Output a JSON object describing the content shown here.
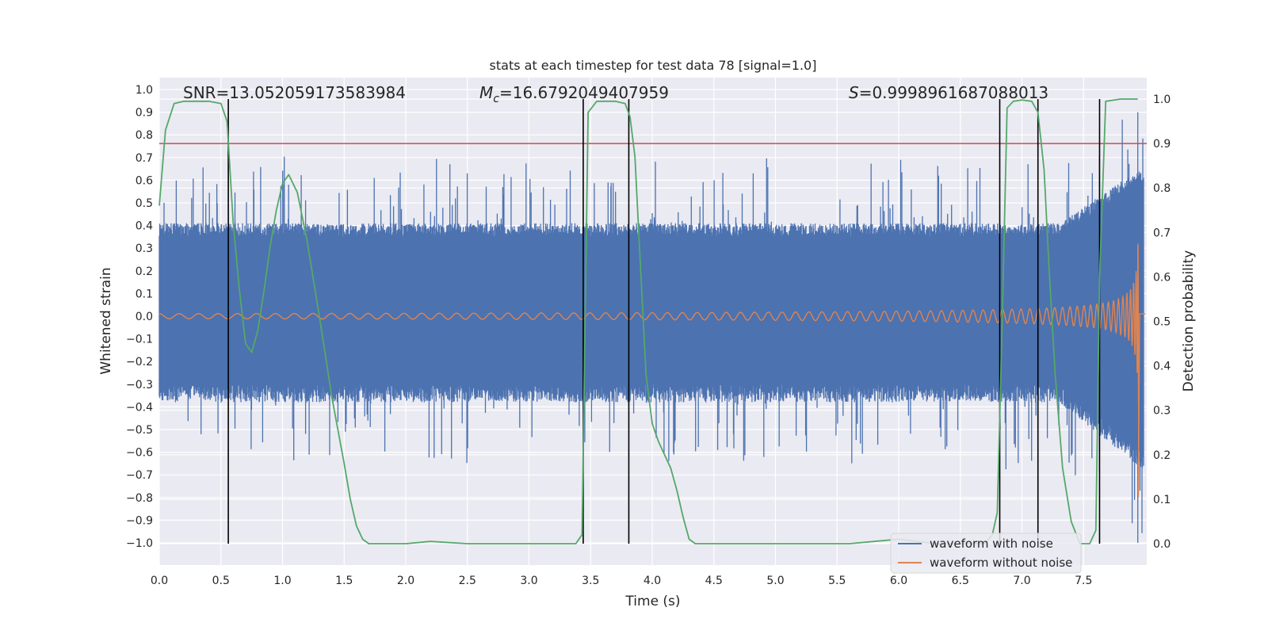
{
  "chart_data": {
    "type": "line",
    "title": "stats at each timestep for test data 78 [signal=1.0]",
    "xlabel": "Time (s)",
    "ylabel": "Whitened strain",
    "y2label": "Detection probability",
    "xlim": [
      0.0,
      8.0
    ],
    "ylim": [
      -1.1,
      1.05
    ],
    "y2lim": [
      -0.05,
      1.03
    ],
    "x_ticks": [
      "0.0",
      "0.5",
      "1.0",
      "1.5",
      "2.0",
      "2.5",
      "3.0",
      "3.5",
      "4.0",
      "4.5",
      "5.0",
      "5.5",
      "6.0",
      "6.5",
      "7.0",
      "7.5"
    ],
    "y_ticks": [
      "1.0",
      "0.9",
      "0.8",
      "0.7",
      "0.6",
      "0.5",
      "0.4",
      "0.3",
      "0.2",
      "0.1",
      "0.0",
      "−0.1",
      "−0.2",
      "−0.3",
      "−0.4",
      "−0.5",
      "−0.6",
      "−0.7",
      "−0.8",
      "−0.9",
      "−1.0"
    ],
    "y2_ticks": [
      "1.0",
      "0.9",
      "0.8",
      "0.7",
      "0.6",
      "0.5",
      "0.4",
      "0.3",
      "0.2",
      "0.1",
      "0.0"
    ],
    "grid": true,
    "legend_position": "lower-right",
    "annotations": {
      "snr": "SNR=13.052059173583984",
      "mc_symbol": "M",
      "mc_sub": "c",
      "mc_value": "=16.6792049407959",
      "s_symbol": "S",
      "s_value": "=0.9998961687088013"
    },
    "series": [
      {
        "name": "waveform with noise",
        "color": "#4c72b0",
        "axis": "left",
        "description_values": {
          "typical_envelope": [
            -0.3,
            0.35
          ],
          "max_spike": 0.9,
          "min_spike": -1.0
        }
      },
      {
        "name": "waveform without noise",
        "color": "#dd8452",
        "axis": "left",
        "chirp": {
          "start_amplitude": 0.01,
          "end_amplitude": 0.72,
          "end_time": 7.95,
          "coalescence_min": -0.8
        }
      },
      {
        "name": "",
        "color": "#55a868",
        "axis": "right",
        "x": [
          0.0,
          0.05,
          0.12,
          0.2,
          0.3,
          0.4,
          0.5,
          0.55,
          0.6,
          0.65,
          0.7,
          0.75,
          0.8,
          0.85,
          0.9,
          0.95,
          1.0,
          1.05,
          1.12,
          1.2,
          1.3,
          1.4,
          1.5,
          1.55,
          1.6,
          1.65,
          1.7,
          1.8,
          2.0,
          2.2,
          2.5,
          2.8,
          3.0,
          3.2,
          3.38,
          3.43,
          3.48,
          3.55,
          3.62,
          3.7,
          3.78,
          3.82,
          3.86,
          3.9,
          3.95,
          4.0,
          4.05,
          4.1,
          4.15,
          4.2,
          4.25,
          4.3,
          4.35,
          4.4,
          4.5,
          4.8,
          5.2,
          5.6,
          5.8,
          6.0,
          6.3,
          6.55,
          6.7,
          6.76,
          6.8,
          6.84,
          6.88,
          6.93,
          7.0,
          7.08,
          7.13,
          7.18,
          7.22,
          7.27,
          7.33,
          7.4,
          7.47,
          7.55,
          7.6,
          7.63,
          7.68,
          7.8,
          7.94
        ],
        "values": [
          0.76,
          0.93,
          0.99,
          0.995,
          0.995,
          0.995,
          0.99,
          0.95,
          0.72,
          0.57,
          0.45,
          0.43,
          0.48,
          0.57,
          0.67,
          0.75,
          0.81,
          0.83,
          0.79,
          0.68,
          0.51,
          0.33,
          0.18,
          0.1,
          0.04,
          0.01,
          0.0,
          0.0,
          0.0,
          0.005,
          0.0,
          0.0,
          0.0,
          0.0,
          0.0,
          0.02,
          0.97,
          0.995,
          0.995,
          0.995,
          0.99,
          0.96,
          0.87,
          0.65,
          0.38,
          0.27,
          0.23,
          0.2,
          0.17,
          0.12,
          0.06,
          0.01,
          0.0,
          0.0,
          0.0,
          0.0,
          0.0,
          0.0,
          0.005,
          0.01,
          0.0,
          0.0,
          0.0,
          0.02,
          0.07,
          0.5,
          0.98,
          0.995,
          0.998,
          0.995,
          0.97,
          0.84,
          0.62,
          0.38,
          0.17,
          0.05,
          0.0,
          0.0,
          0.03,
          0.6,
          0.995,
          1.0,
          1.0
        ]
      }
    ],
    "hlines": [
      {
        "axis": "right",
        "value": 0.9,
        "color": "#c44e52"
      }
    ],
    "vlines_x": [
      0.56,
      3.44,
      3.81,
      6.82,
      7.13,
      7.63
    ],
    "vlines_y2_range": [
      0.0,
      1.0
    ]
  }
}
